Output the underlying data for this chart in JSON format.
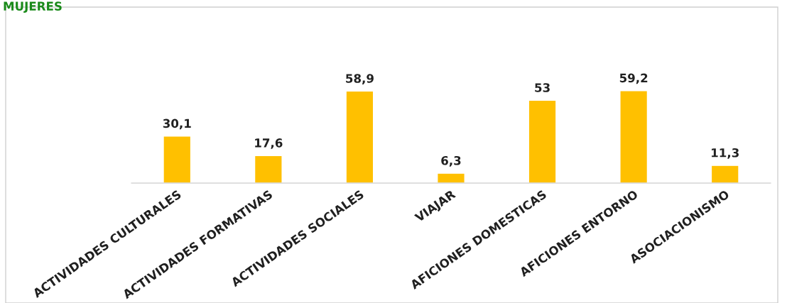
{
  "chart_data": {
    "type": "bar",
    "title": "MUJERES",
    "categories": [
      "ACTIVIDADES CULTURALES",
      "ACTIVIDADES FORMATIVAS",
      "ACTIVIDADES SOCIALES",
      "VIAJAR",
      "AFICIONES DOMESTICAS",
      "AFICIONES ENTORNO",
      "ASOCIACIONISMO"
    ],
    "values": [
      30.1,
      17.6,
      58.9,
      6.3,
      53,
      59.2,
      11.3
    ],
    "value_labels": [
      "30,1",
      "17,6",
      "58,9",
      "6,3",
      "53",
      "59,2",
      "11,3"
    ],
    "color": "#ffc000",
    "tick_labels": "x",
    "grid": false,
    "legend": false
  }
}
